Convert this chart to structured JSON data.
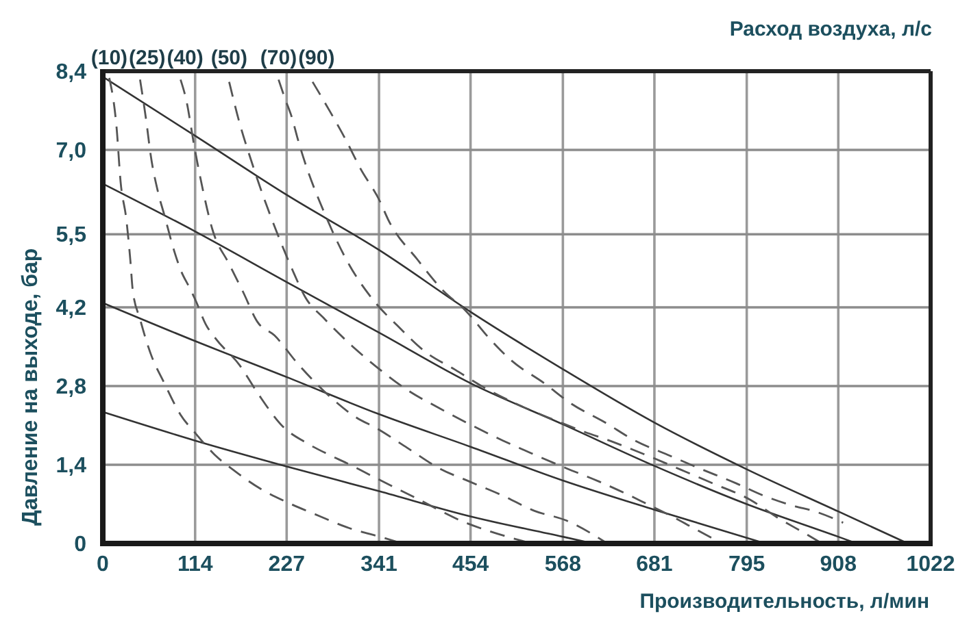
{
  "chart_data": {
    "type": "line",
    "xlabel": "Производительность, л/мин",
    "ylabel": "Давление на выходе, бар",
    "annotations": [
      "Расход воздуха, л/с"
    ],
    "xlim": [
      0,
      1022
    ],
    "ylim": [
      0,
      8.4
    ],
    "xticks": [
      0,
      114,
      227,
      341,
      454,
      568,
      681,
      795,
      908,
      1022
    ],
    "yticks": [
      0,
      {
        "value": 1.4,
        "label": "1,4"
      },
      {
        "value": 2.8,
        "label": "2,8"
      },
      {
        "value": 4.2,
        "label": "4,2"
      },
      {
        "value": 5.5,
        "label": "5,5"
      },
      {
        "value": 7.0,
        "label": "7,0"
      },
      {
        "value": 8.4,
        "label": "8,4"
      }
    ],
    "grid": true,
    "series": [
      {
        "color": "#333333",
        "line_style": "solid",
        "x": [
          0,
          114,
          227,
          341,
          454,
          568,
          681,
          795,
          908,
          994
        ],
        "values": [
          8.3,
          7.25,
          6.2,
          5.22,
          4.12,
          3.1,
          2.15,
          1.32,
          0.57,
          0
        ]
      },
      {
        "color": "#333333",
        "line_style": "solid",
        "x": [
          0,
          114,
          227,
          341,
          454,
          568,
          681,
          795,
          908,
          931
        ],
        "values": [
          6.4,
          5.55,
          4.65,
          3.75,
          2.85,
          2.12,
          1.38,
          0.7,
          0.12,
          0
        ]
      },
      {
        "color": "#333333",
        "line_style": "solid",
        "x": [
          0,
          114,
          227,
          341,
          454,
          568,
          681,
          795,
          818
        ],
        "values": [
          4.28,
          3.6,
          2.96,
          2.3,
          1.72,
          1.12,
          0.6,
          0.1,
          0
        ]
      },
      {
        "color": "#333333",
        "line_style": "solid",
        "x": [
          0,
          114,
          227,
          341,
          454,
          568,
          605
        ],
        "values": [
          2.34,
          1.83,
          1.37,
          0.93,
          0.48,
          0.12,
          0
        ]
      },
      {
        "name": "(10)",
        "color": "#555555",
        "line_style": "dashed",
        "x": [
          8,
          17,
          22,
          29,
          34,
          37,
          46,
          59,
          76,
          96,
          115,
          138,
          161,
          195,
          228,
          267,
          301,
          347,
          370
        ],
        "values": [
          8.28,
          7.4,
          6.43,
          5.77,
          5.04,
          4.5,
          3.99,
          3.38,
          2.85,
          2.29,
          1.95,
          1.58,
          1.31,
          0.97,
          0.73,
          0.49,
          0.29,
          0.1,
          0
        ]
      },
      {
        "name": "(25)",
        "color": "#555555",
        "line_style": "dashed",
        "x": [
          46,
          54,
          59,
          68,
          76,
          88,
          96,
          107,
          115,
          127,
          139,
          169,
          191,
          223,
          250,
          279,
          301,
          335,
          381,
          448,
          477,
          530
        ],
        "values": [
          8.25,
          7.48,
          6.92,
          6.26,
          5.84,
          5.21,
          4.87,
          4.55,
          4.31,
          3.9,
          3.65,
          3.17,
          2.68,
          2.07,
          1.8,
          1.58,
          1.43,
          1.18,
          0.85,
          0.37,
          0.22,
          0
        ]
      },
      {
        "name": "(40)",
        "color": "#555555",
        "line_style": "dashed",
        "x": [
          96,
          103,
          113,
          124,
          135,
          156,
          173,
          191,
          212,
          240,
          279,
          313,
          338,
          376,
          415,
          453,
          494,
          533,
          572,
          623
        ],
        "values": [
          8.25,
          7.89,
          7.06,
          6.26,
          5.6,
          4.97,
          4.48,
          3.94,
          3.7,
          3.21,
          2.63,
          2.24,
          2.05,
          1.7,
          1.34,
          1.1,
          0.85,
          0.58,
          0.41,
          0
        ]
      },
      {
        "name": "(50)",
        "color": "#555555",
        "line_style": "dashed",
        "x": [
          156,
          169,
          183,
          198,
          215,
          234,
          250,
          274,
          308,
          338,
          376,
          415,
          453,
          494,
          533,
          572,
          613,
          651,
          668,
          707,
          731,
          765
        ],
        "values": [
          8.21,
          7.47,
          6.82,
          6.18,
          5.53,
          4.87,
          4.38,
          3.99,
          3.51,
          3.14,
          2.73,
          2.41,
          2.12,
          1.83,
          1.58,
          1.34,
          1.1,
          0.85,
          0.73,
          0.45,
          0.26,
          0
        ]
      },
      {
        "name": "(70)",
        "color": "#555555",
        "line_style": "dashed",
        "x": [
          217,
          225,
          234,
          240,
          279,
          301,
          335,
          364,
          398,
          435,
          470,
          511,
          550,
          592,
          631,
          673,
          714,
          753,
          799,
          833,
          868,
          888
        ],
        "values": [
          8.25,
          7.91,
          7.55,
          7.23,
          5.7,
          5.04,
          4.31,
          3.87,
          3.41,
          3.09,
          2.78,
          2.48,
          2.24,
          2.0,
          1.8,
          1.56,
          1.31,
          1.07,
          0.78,
          0.46,
          0.17,
          0
        ]
      },
      {
        "name": "(90)",
        "color": "#555555",
        "line_style": "dashed",
        "x": [
          259,
          279,
          300,
          318,
          342,
          352,
          389,
          420,
          448,
          477,
          504,
          545,
          579,
          618,
          657,
          697,
          736,
          782,
          816,
          855,
          877,
          914
        ],
        "values": [
          8.21,
          7.72,
          7.18,
          6.67,
          6.09,
          5.77,
          5.04,
          4.5,
          4.14,
          3.65,
          3.26,
          2.85,
          2.48,
          2.17,
          1.83,
          1.58,
          1.34,
          1.07,
          0.85,
          0.66,
          0.58,
          0.37
        ]
      }
    ]
  }
}
